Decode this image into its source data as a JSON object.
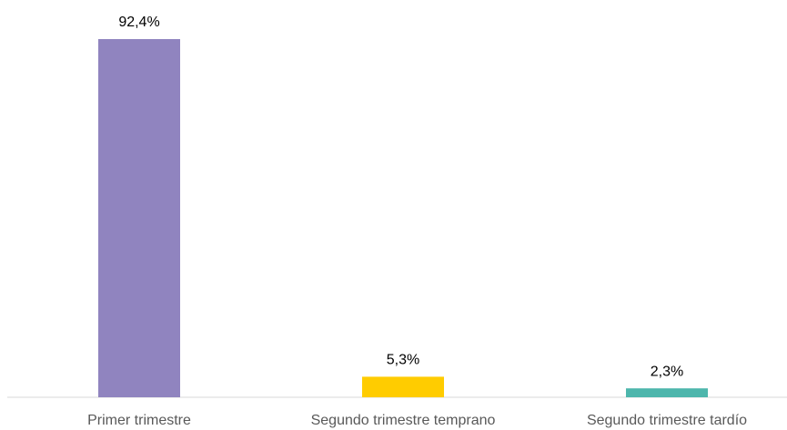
{
  "chart_data": {
    "type": "bar",
    "categories": [
      "Primer trimestre",
      "Segundo trimestre temprano",
      "Segundo trimestre tardío"
    ],
    "values": [
      92.4,
      5.3,
      2.3
    ],
    "value_labels": [
      "92,4%",
      "5,3%",
      "2,3%"
    ],
    "colors": [
      "#9084bf",
      "#ffcc00",
      "#4db6ac"
    ]
  }
}
